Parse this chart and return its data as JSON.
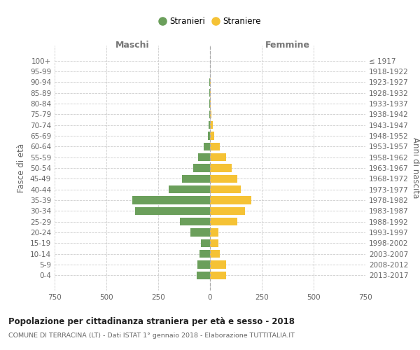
{
  "age_groups": [
    "100+",
    "95-99",
    "90-94",
    "85-89",
    "80-84",
    "75-79",
    "70-74",
    "65-69",
    "60-64",
    "55-59",
    "50-54",
    "45-49",
    "40-44",
    "35-39",
    "30-34",
    "25-29",
    "20-24",
    "15-19",
    "10-14",
    "5-9",
    "0-4"
  ],
  "birth_years": [
    "≤ 1917",
    "1918-1922",
    "1923-1927",
    "1928-1932",
    "1933-1937",
    "1938-1942",
    "1943-1947",
    "1948-1952",
    "1953-1957",
    "1958-1962",
    "1963-1967",
    "1968-1972",
    "1973-1977",
    "1978-1982",
    "1983-1987",
    "1988-1992",
    "1993-1997",
    "1998-2002",
    "2003-2007",
    "2008-2012",
    "2013-2017"
  ],
  "males": [
    1,
    1,
    2,
    2,
    2,
    4,
    7,
    10,
    32,
    58,
    80,
    135,
    200,
    375,
    360,
    145,
    95,
    45,
    50,
    62,
    65
  ],
  "females": [
    1,
    1,
    3,
    3,
    4,
    6,
    14,
    20,
    46,
    78,
    105,
    132,
    148,
    200,
    168,
    132,
    42,
    42,
    46,
    77,
    77
  ],
  "male_color": "#6b9f5b",
  "female_color": "#f5c235",
  "grid_color": "#cccccc",
  "title": "Popolazione per cittadinanza straniera per età e sesso - 2018",
  "subtitle": "COMUNE DI TERRACINA (LT) - Dati ISTAT 1° gennaio 2018 - Elaborazione TUTTITALIA.IT",
  "header_left": "Maschi",
  "header_right": "Femmine",
  "ylabel_left": "Fasce di età",
  "ylabel_right": "Anni di nascita",
  "legend_male": "Stranieri",
  "legend_female": "Straniere",
  "xlim": 750
}
